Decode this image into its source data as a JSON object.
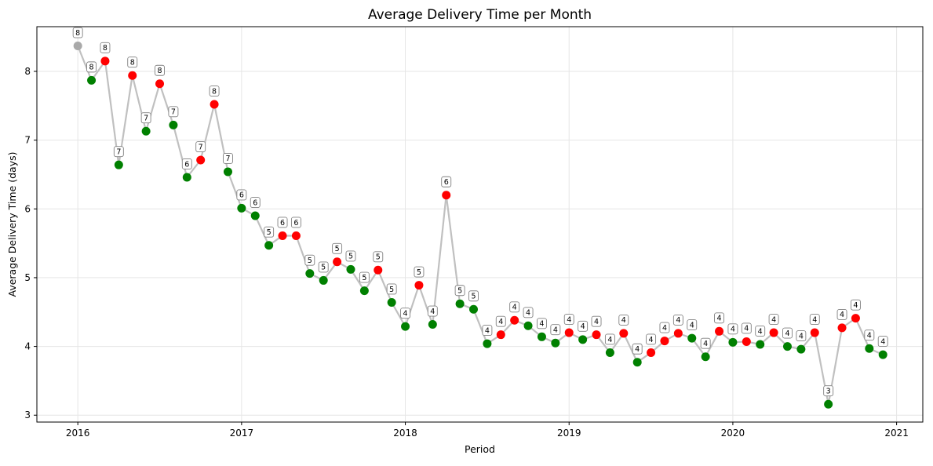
{
  "chart_data": {
    "type": "line",
    "title": "Average Delivery Time per Month",
    "xlabel": "Period",
    "ylabel": "Average Delivery Time (days)",
    "xlim": [
      2015.75,
      2021.16
    ],
    "ylim": [
      2.9,
      8.65
    ],
    "x_ticks": [
      2016,
      2017,
      2018,
      2019,
      2020,
      2021
    ],
    "x_tick_labels": [
      "2016",
      "2017",
      "2018",
      "2019",
      "2020",
      "2021"
    ],
    "y_ticks": [
      3,
      4,
      5,
      6,
      7,
      8
    ],
    "y_tick_labels": [
      "3",
      "4",
      "5",
      "6",
      "7",
      "8"
    ],
    "grid": true,
    "line_color": "#c0c0c0",
    "marker_colors": {
      "first": "#a9a9a9",
      "decrease": "#008000",
      "increase": "#ff0000"
    },
    "x": [
      "2016-01",
      "2016-02",
      "2016-03",
      "2016-04",
      "2016-05",
      "2016-06",
      "2016-07",
      "2016-08",
      "2016-09",
      "2016-10",
      "2016-11",
      "2016-12",
      "2017-01",
      "2017-02",
      "2017-03",
      "2017-04",
      "2017-05",
      "2017-06",
      "2017-07",
      "2017-08",
      "2017-09",
      "2017-10",
      "2017-11",
      "2017-12",
      "2018-01",
      "2018-02",
      "2018-03",
      "2018-04",
      "2018-05",
      "2018-06",
      "2018-07",
      "2018-08",
      "2018-09",
      "2018-10",
      "2018-11",
      "2018-12",
      "2019-01",
      "2019-02",
      "2019-03",
      "2019-04",
      "2019-05",
      "2019-06",
      "2019-07",
      "2019-08",
      "2019-09",
      "2019-10",
      "2019-11",
      "2019-12",
      "2020-01",
      "2020-02",
      "2020-03",
      "2020-04",
      "2020-05",
      "2020-06",
      "2020-07",
      "2020-08",
      "2020-09",
      "2020-10",
      "2020-11",
      "2020-12"
    ],
    "values": [
      8.37,
      7.87,
      8.15,
      6.64,
      7.94,
      7.13,
      7.82,
      7.22,
      6.46,
      6.71,
      7.52,
      6.54,
      6.01,
      5.9,
      5.47,
      5.61,
      5.61,
      5.06,
      4.96,
      5.23,
      5.12,
      4.81,
      5.11,
      4.64,
      4.29,
      4.89,
      4.32,
      6.2,
      4.62,
      4.54,
      4.04,
      4.17,
      4.38,
      4.3,
      4.14,
      4.05,
      4.2,
      4.1,
      4.17,
      3.91,
      4.19,
      3.77,
      3.91,
      4.08,
      4.19,
      4.12,
      3.85,
      4.22,
      4.06,
      4.07,
      4.03,
      4.2,
      4.0,
      3.96,
      4.2,
      3.16,
      4.27,
      4.41,
      3.97,
      3.88
    ],
    "labels": [
      "8",
      "8",
      "8",
      "7",
      "8",
      "7",
      "8",
      "7",
      "6",
      "7",
      "8",
      "7",
      "6",
      "6",
      "5",
      "6",
      "6",
      "5",
      "5",
      "5",
      "5",
      "5",
      "5",
      "5",
      "4",
      "5",
      "4",
      "6",
      "5",
      "5",
      "4",
      "4",
      "4",
      "4",
      "4",
      "4",
      "4",
      "4",
      "4",
      "4",
      "4",
      "4",
      "4",
      "4",
      "4",
      "4",
      "4",
      "4",
      "4",
      "4",
      "4",
      "4",
      "4",
      "4",
      "4",
      "3",
      "4",
      "4",
      "4",
      "4"
    ]
  }
}
